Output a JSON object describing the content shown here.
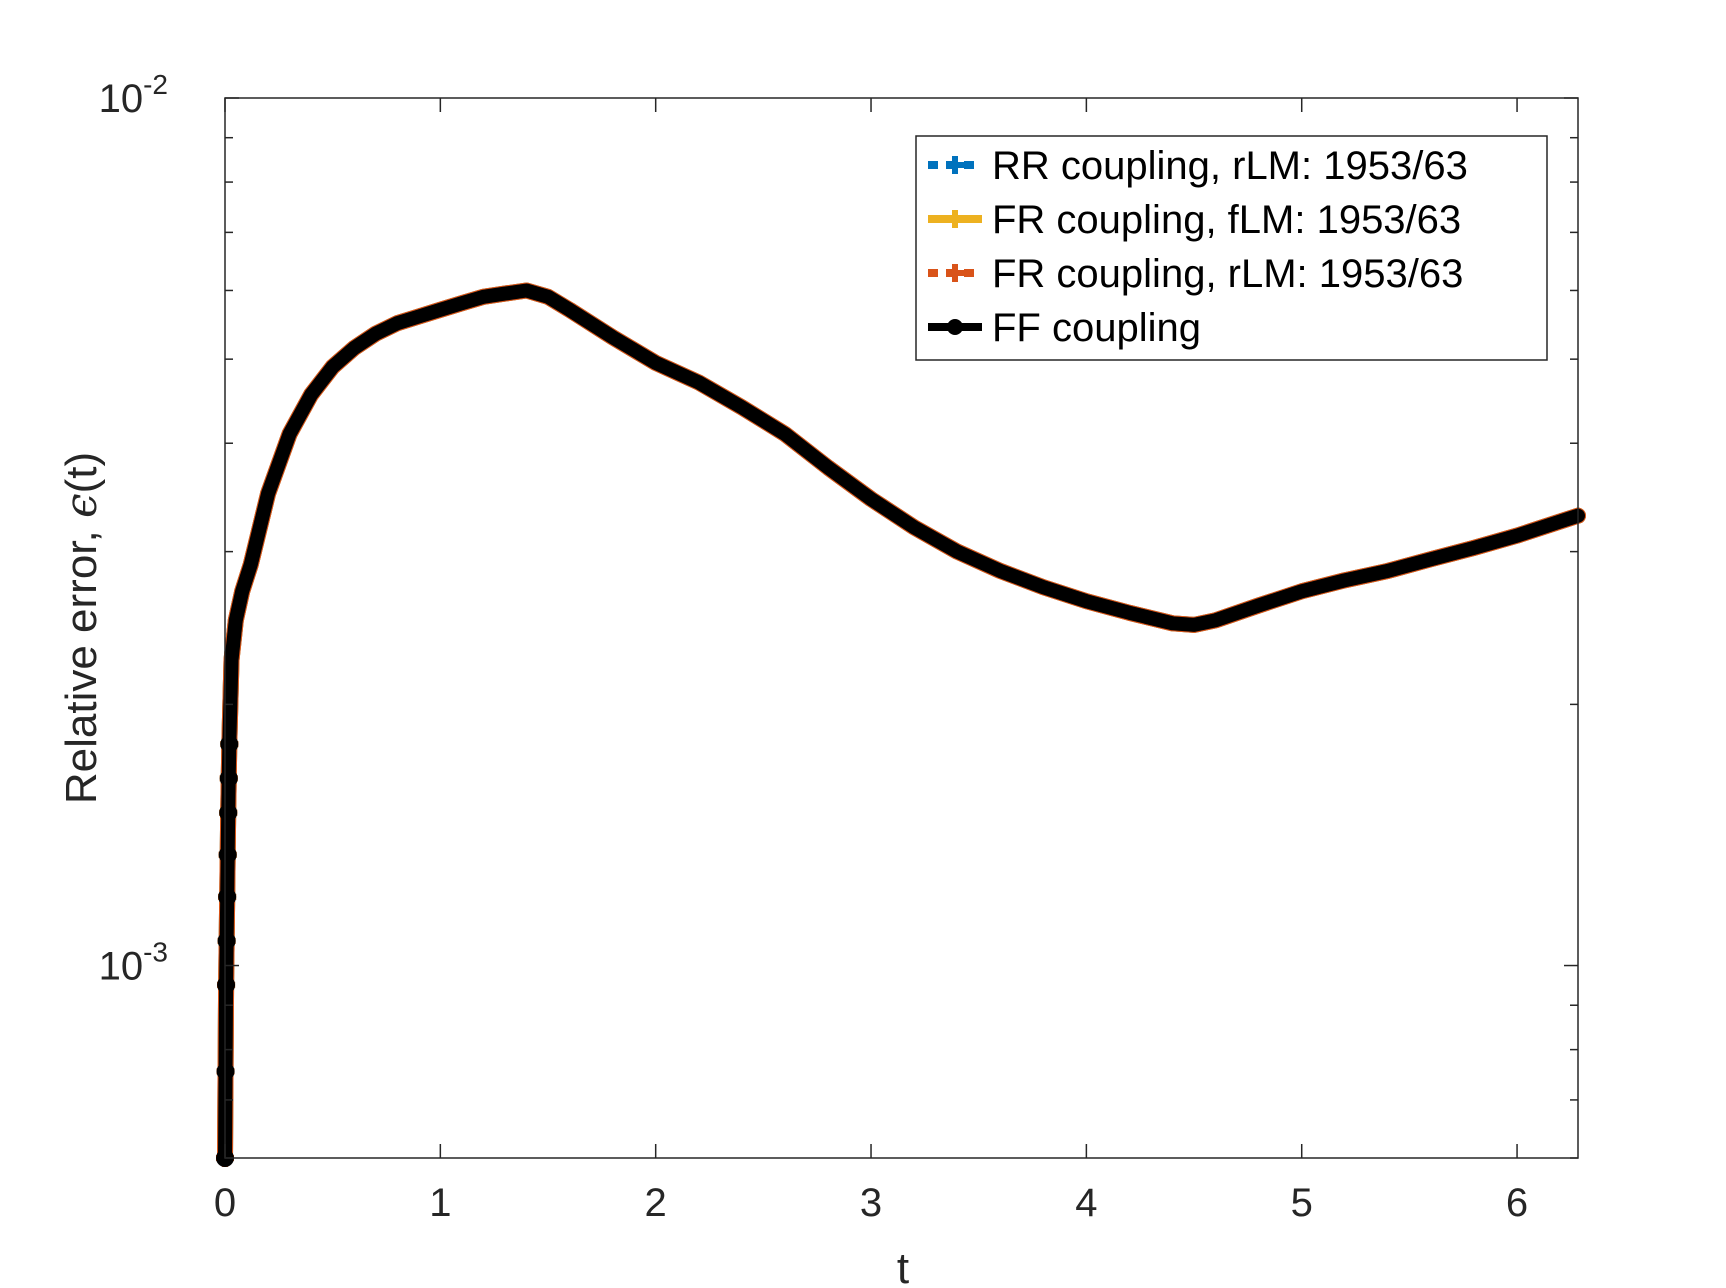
{
  "chart_data": {
    "type": "line",
    "title": "",
    "xlabel": "t",
    "ylabel_text": "Relative error, ",
    "ylabel_symbol": "ϵ",
    "ylabel_arg": "(t)",
    "xlim": [
      0,
      6.283
    ],
    "ylim": [
      0.0006,
      0.01
    ],
    "yscale": "log",
    "grid": false,
    "legend_position": "top-right",
    "x_ticks": [
      {
        "value": 0,
        "label": "0"
      },
      {
        "value": 1,
        "label": "1"
      },
      {
        "value": 2,
        "label": "2"
      },
      {
        "value": 3,
        "label": "3"
      },
      {
        "value": 4,
        "label": "4"
      },
      {
        "value": 5,
        "label": "5"
      },
      {
        "value": 6,
        "label": "6"
      }
    ],
    "y_ticks": [
      {
        "value": 0.001,
        "base": "10",
        "exp": "-3"
      },
      {
        "value": 0.01,
        "base": "10",
        "exp": "-2"
      }
    ],
    "series": [
      {
        "name": "RR coupling, rLM: 1953/63",
        "color": "#0072BD",
        "dash": "dotted",
        "marker": "plus"
      },
      {
        "name": "FR coupling, fLM: 1953/63",
        "color": "#EDB120",
        "dash": "solid",
        "marker": "plus"
      },
      {
        "name": "FR coupling, rLM: 1953/63",
        "color": "#D95319",
        "dash": "dotted",
        "marker": "plus"
      },
      {
        "name": "FF coupling",
        "color": "#000000",
        "dash": "solid",
        "marker": "circle"
      }
    ],
    "curve": {
      "x": [
        0,
        0.005,
        0.01,
        0.015,
        0.02,
        0.03,
        0.05,
        0.08,
        0.12,
        0.2,
        0.3,
        0.4,
        0.5,
        0.6,
        0.7,
        0.8,
        0.9,
        1.0,
        1.1,
        1.2,
        1.3,
        1.4,
        1.5,
        1.6,
        1.8,
        2.0,
        2.2,
        2.4,
        2.6,
        2.8,
        3.0,
        3.2,
        3.4,
        3.6,
        3.8,
        4.0,
        4.2,
        4.4,
        4.5,
        4.6,
        4.8,
        5.0,
        5.2,
        5.4,
        5.6,
        5.8,
        6.0,
        6.2,
        6.283
      ],
      "y": [
        0.0006,
        0.00095,
        0.0012,
        0.0015,
        0.0018,
        0.00225,
        0.0025,
        0.0027,
        0.0029,
        0.0035,
        0.0041,
        0.00455,
        0.0049,
        0.00515,
        0.00535,
        0.0055,
        0.0056,
        0.0057,
        0.0058,
        0.0059,
        0.00595,
        0.006,
        0.0059,
        0.0057,
        0.0053,
        0.00495,
        0.0047,
        0.0044,
        0.0041,
        0.00375,
        0.00345,
        0.0032,
        0.003,
        0.00285,
        0.00273,
        0.00263,
        0.00255,
        0.00248,
        0.00247,
        0.0025,
        0.0026,
        0.0027,
        0.00278,
        0.00285,
        0.00294,
        0.00303,
        0.00313,
        0.00325,
        0.0033
      ]
    },
    "marker_x": [
      0,
      0.0025,
      0.005,
      0.0075,
      0.01,
      0.0125,
      0.015,
      0.0175,
      0.02
    ]
  }
}
